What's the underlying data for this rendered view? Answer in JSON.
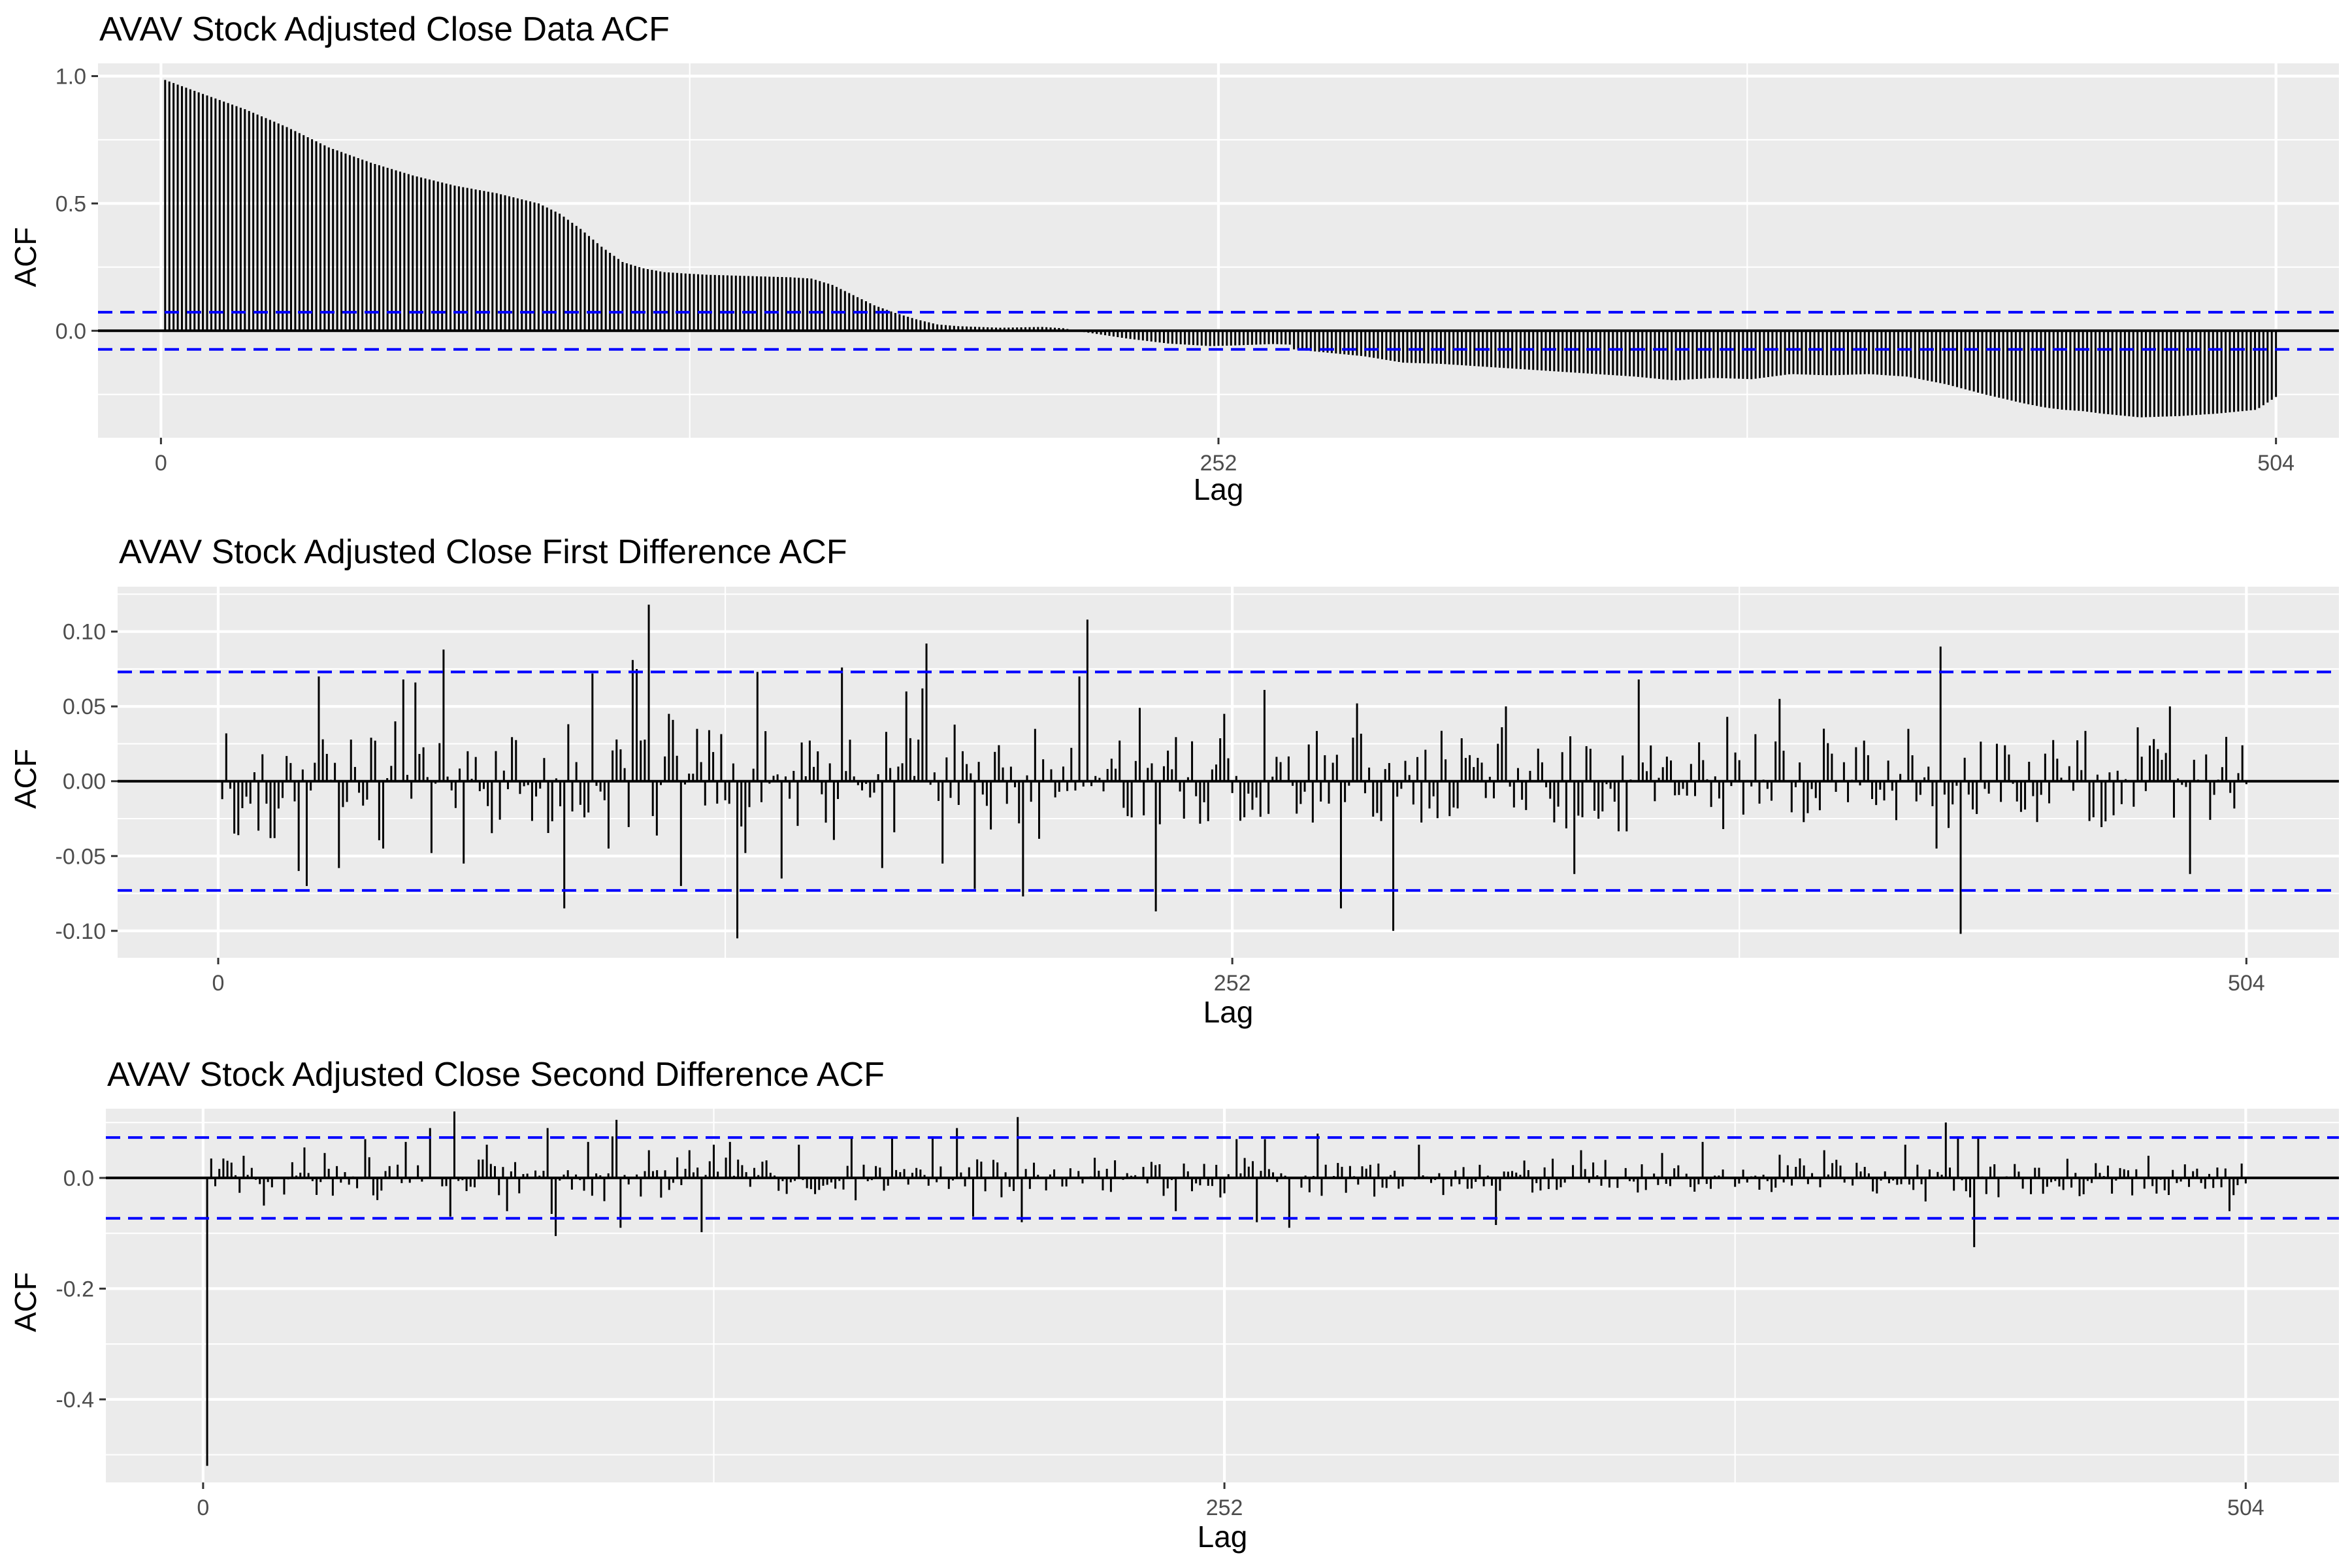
{
  "colors": {
    "bar": "#000000",
    "ci": "#0000ff",
    "panel": "#ebebeb",
    "grid": "#ffffff"
  },
  "chart_data": [
    {
      "type": "bar",
      "title": "AVAV Stock Adjusted Close Data ACF",
      "xlabel": "Lag",
      "ylabel": "ACF",
      "xlim": [
        -15,
        519
      ],
      "ylim": [
        -0.42,
        1.05
      ],
      "xticks": [
        0,
        252,
        504
      ],
      "xtick_labels": [
        "0",
        "252",
        "504"
      ],
      "yticks": [
        1.0,
        0.5,
        0.0
      ],
      "ytick_labels": [
        "1.0",
        "0.5",
        "0.0"
      ],
      "conf_limit": 0.073,
      "grid": true,
      "lags": {
        "start": 1,
        "end": 504
      },
      "curve": [
        [
          1,
          0.985
        ],
        [
          10,
          0.93
        ],
        [
          20,
          0.87
        ],
        [
          30,
          0.8
        ],
        [
          40,
          0.72
        ],
        [
          50,
          0.66
        ],
        [
          60,
          0.61
        ],
        [
          70,
          0.57
        ],
        [
          80,
          0.54
        ],
        [
          90,
          0.5
        ],
        [
          95,
          0.46
        ],
        [
          100,
          0.4
        ],
        [
          105,
          0.33
        ],
        [
          110,
          0.27
        ],
        [
          115,
          0.245
        ],
        [
          120,
          0.23
        ],
        [
          130,
          0.22
        ],
        [
          140,
          0.215
        ],
        [
          150,
          0.21
        ],
        [
          155,
          0.205
        ],
        [
          160,
          0.18
        ],
        [
          165,
          0.14
        ],
        [
          170,
          0.1
        ],
        [
          175,
          0.07
        ],
        [
          180,
          0.045
        ],
        [
          185,
          0.025
        ],
        [
          190,
          0.018
        ],
        [
          200,
          0.012
        ],
        [
          210,
          0.015
        ],
        [
          215,
          0.01
        ],
        [
          220,
          -0.005
        ],
        [
          230,
          -0.03
        ],
        [
          240,
          -0.05
        ],
        [
          245,
          -0.055
        ],
        [
          250,
          -0.06
        ],
        [
          255,
          -0.058
        ],
        [
          260,
          -0.055
        ],
        [
          265,
          -0.052
        ],
        [
          270,
          -0.055
        ],
        [
          275,
          -0.06
        ],
        [
          280,
          -0.06
        ],
        [
          285,
          -0.068
        ],
        [
          290,
          -0.08
        ],
        [
          300,
          -0.09
        ],
        [
          310,
          -0.085
        ],
        [
          320,
          -0.07
        ],
        [
          325,
          -0.065
        ],
        [
          330,
          -0.06
        ],
        [
          336,
          -0.058
        ],
        [
          340,
          -0.05
        ],
        [
          345,
          -0.045
        ],
        [
          350,
          -0.05
        ],
        [
          360,
          -0.06
        ],
        [
          370,
          -0.08
        ],
        [
          380,
          -0.1
        ],
        [
          390,
          -0.125
        ],
        [
          400,
          -0.135
        ],
        [
          410,
          -0.14
        ],
        [
          420,
          -0.15
        ],
        [
          430,
          -0.16
        ],
        [
          440,
          -0.175
        ],
        [
          450,
          -0.19
        ],
        [
          460,
          -0.205
        ],
        [
          470,
          -0.21
        ],
        [
          480,
          -0.205
        ],
        [
          490,
          -0.195
        ],
        [
          500,
          -0.21
        ],
        [
          504,
          -0.26
        ]
      ],
      "curve_tail": [
        [
          280,
          -0.06
        ],
        [
          290,
          -0.07
        ],
        [
          300,
          -0.085
        ],
        [
          310,
          -0.1
        ],
        [
          320,
          -0.125
        ],
        [
          330,
          -0.13
        ],
        [
          340,
          -0.14
        ],
        [
          350,
          -0.15
        ],
        [
          360,
          -0.16
        ],
        [
          370,
          -0.17
        ],
        [
          380,
          -0.18
        ],
        [
          390,
          -0.195
        ],
        [
          400,
          -0.185
        ],
        [
          410,
          -0.19
        ],
        [
          420,
          -0.17
        ],
        [
          430,
          -0.175
        ],
        [
          440,
          -0.17
        ],
        [
          450,
          -0.18
        ],
        [
          460,
          -0.21
        ],
        [
          470,
          -0.25
        ],
        [
          480,
          -0.285
        ],
        [
          485,
          -0.3
        ],
        [
          490,
          -0.31
        ],
        [
          495,
          -0.315
        ],
        [
          500,
          -0.325
        ],
        [
          510,
          -0.34
        ],
        [
          520,
          -0.335
        ],
        [
          530,
          -0.325
        ],
        [
          540,
          -0.31
        ],
        [
          545,
          -0.26
        ]
      ]
    },
    {
      "type": "bar",
      "title": "AVAV Stock Adjusted Close First Difference ACF",
      "xlabel": "Lag",
      "ylabel": "ACF",
      "xlim": [
        -25,
        527
      ],
      "ylim": [
        -0.118,
        0.13
      ],
      "xticks": [
        0,
        252,
        504
      ],
      "xtick_labels": [
        "0",
        "252",
        "504"
      ],
      "yticks": [
        0.1,
        0.05,
        0.0,
        -0.05,
        -0.1
      ],
      "ytick_labels": [
        "0.10",
        "0.05",
        "0.00",
        "-0.05",
        "-0.10"
      ],
      "conf_limit": 0.073,
      "grid": true,
      "lags": {
        "start": 1,
        "end": 504
      },
      "amplitude": 0.042,
      "seed": 17,
      "spikes": [
        [
          1,
          -0.012
        ],
        [
          2,
          0.032
        ],
        [
          3,
          -0.005
        ],
        [
          4,
          -0.035
        ],
        [
          5,
          -0.036
        ],
        [
          6,
          -0.018
        ],
        [
          8,
          -0.015
        ],
        [
          9,
          0.006
        ],
        [
          10,
          -0.033
        ],
        [
          11,
          0.018
        ],
        [
          12,
          -0.015
        ],
        [
          13,
          -0.038
        ],
        [
          14,
          -0.038
        ],
        [
          20,
          -0.06
        ],
        [
          22,
          -0.07
        ],
        [
          25,
          0.07
        ],
        [
          26,
          0.028
        ],
        [
          30,
          -0.058
        ],
        [
          41,
          -0.045
        ],
        [
          44,
          0.04
        ],
        [
          46,
          0.068
        ],
        [
          49,
          0.066
        ],
        [
          53,
          -0.048
        ],
        [
          56,
          0.088
        ],
        [
          61,
          -0.055
        ],
        [
          86,
          -0.085
        ],
        [
          93,
          0.072
        ],
        [
          97,
          -0.045
        ],
        [
          103,
          0.081
        ],
        [
          104,
          0.075
        ],
        [
          107,
          0.118
        ],
        [
          112,
          0.045
        ],
        [
          113,
          0.041
        ],
        [
          115,
          -0.07
        ],
        [
          119,
          0.035
        ],
        [
          129,
          -0.105
        ],
        [
          131,
          -0.048
        ],
        [
          134,
          -0.094
        ],
        [
          134,
          0.073
        ],
        [
          135,
          -0.014
        ],
        [
          140,
          -0.065
        ],
        [
          155,
          0.076
        ],
        [
          165,
          0.072
        ],
        [
          165,
          -0.058
        ],
        [
          171,
          0.06
        ],
        [
          175,
          0.062
        ],
        [
          176,
          0.092
        ],
        [
          180,
          -0.055
        ],
        [
          188,
          -0.072
        ],
        [
          200,
          -0.077
        ],
        [
          214,
          0.07
        ],
        [
          216,
          0.108
        ],
        [
          229,
          0.049
        ],
        [
          233,
          -0.087
        ],
        [
          240,
          -0.025
        ],
        [
          250,
          0.045
        ],
        [
          260,
          0.061
        ],
        [
          279,
          -0.085
        ],
        [
          283,
          0.052
        ],
        [
          292,
          -0.1
        ],
        [
          320,
          0.05
        ],
        [
          337,
          -0.062
        ],
        [
          353,
          0.068
        ],
        [
          375,
          0.043
        ],
        [
          388,
          0.055
        ],
        [
          420,
          0.035
        ],
        [
          427,
          -0.045
        ],
        [
          428,
          0.09
        ],
        [
          433,
          -0.102
        ],
        [
          485,
          0.05
        ],
        [
          490,
          -0.062
        ],
        [
          503,
          0.024
        ],
        [
          504,
          -0.002
        ]
      ]
    },
    {
      "type": "bar",
      "title": "AVAV Stock Adjusted Close Second Difference ACF",
      "xlabel": "Lag",
      "ylabel": "ACF",
      "xlim": [
        -24,
        527
      ],
      "ylim": [
        -0.55,
        0.125
      ],
      "xticks": [
        0,
        252,
        504
      ],
      "xtick_labels": [
        "0",
        "252",
        "504"
      ],
      "yticks": [
        0.0,
        -0.2,
        -0.4
      ],
      "ytick_labels": [
        "0.0",
        "-0.2",
        "-0.4"
      ],
      "conf_limit": 0.073,
      "grid": true,
      "lags": {
        "start": 1,
        "end": 504
      },
      "amplitude": 0.045,
      "seed": 29,
      "spikes": [
        [
          1,
          -0.52
        ],
        [
          2,
          0.035
        ],
        [
          3,
          -0.015
        ],
        [
          5,
          0.035
        ],
        [
          10,
          0.04
        ],
        [
          15,
          -0.05
        ],
        [
          20,
          -0.03
        ],
        [
          25,
          0.055
        ],
        [
          30,
          0.045
        ],
        [
          40,
          0.07
        ],
        [
          43,
          -0.04
        ],
        [
          50,
          0.065
        ],
        [
          56,
          0.09
        ],
        [
          61,
          -0.07
        ],
        [
          62,
          0.12
        ],
        [
          70,
          0.06
        ],
        [
          75,
          -0.06
        ],
        [
          85,
          0.09
        ],
        [
          86,
          -0.065
        ],
        [
          87,
          -0.105
        ],
        [
          95,
          0.065
        ],
        [
          101,
          0.075
        ],
        [
          102,
          0.105
        ],
        [
          103,
          -0.09
        ],
        [
          110,
          0.05
        ],
        [
          120,
          0.05
        ],
        [
          123,
          -0.098
        ],
        [
          126,
          0.06
        ],
        [
          130,
          0.065
        ],
        [
          147,
          0.06
        ],
        [
          160,
          0.075
        ],
        [
          170,
          0.075
        ],
        [
          180,
          0.075
        ],
        [
          186,
          0.09
        ],
        [
          190,
          -0.07
        ],
        [
          201,
          0.11
        ],
        [
          202,
          -0.08
        ],
        [
          240,
          -0.06
        ],
        [
          255,
          0.07
        ],
        [
          260,
          -0.08
        ],
        [
          262,
          0.07
        ],
        [
          268,
          -0.09
        ],
        [
          275,
          0.08
        ],
        [
          300,
          0.06
        ],
        [
          319,
          -0.085
        ],
        [
          340,
          0.05
        ],
        [
          360,
          0.045
        ],
        [
          370,
          0.065
        ],
        [
          400,
          0.05
        ],
        [
          420,
          0.06
        ],
        [
          430,
          0.1
        ],
        [
          433,
          0.075
        ],
        [
          437,
          -0.125
        ],
        [
          438,
          0.075
        ],
        [
          480,
          0.04
        ],
        [
          500,
          -0.06
        ],
        [
          504,
          -0.01
        ]
      ]
    }
  ]
}
